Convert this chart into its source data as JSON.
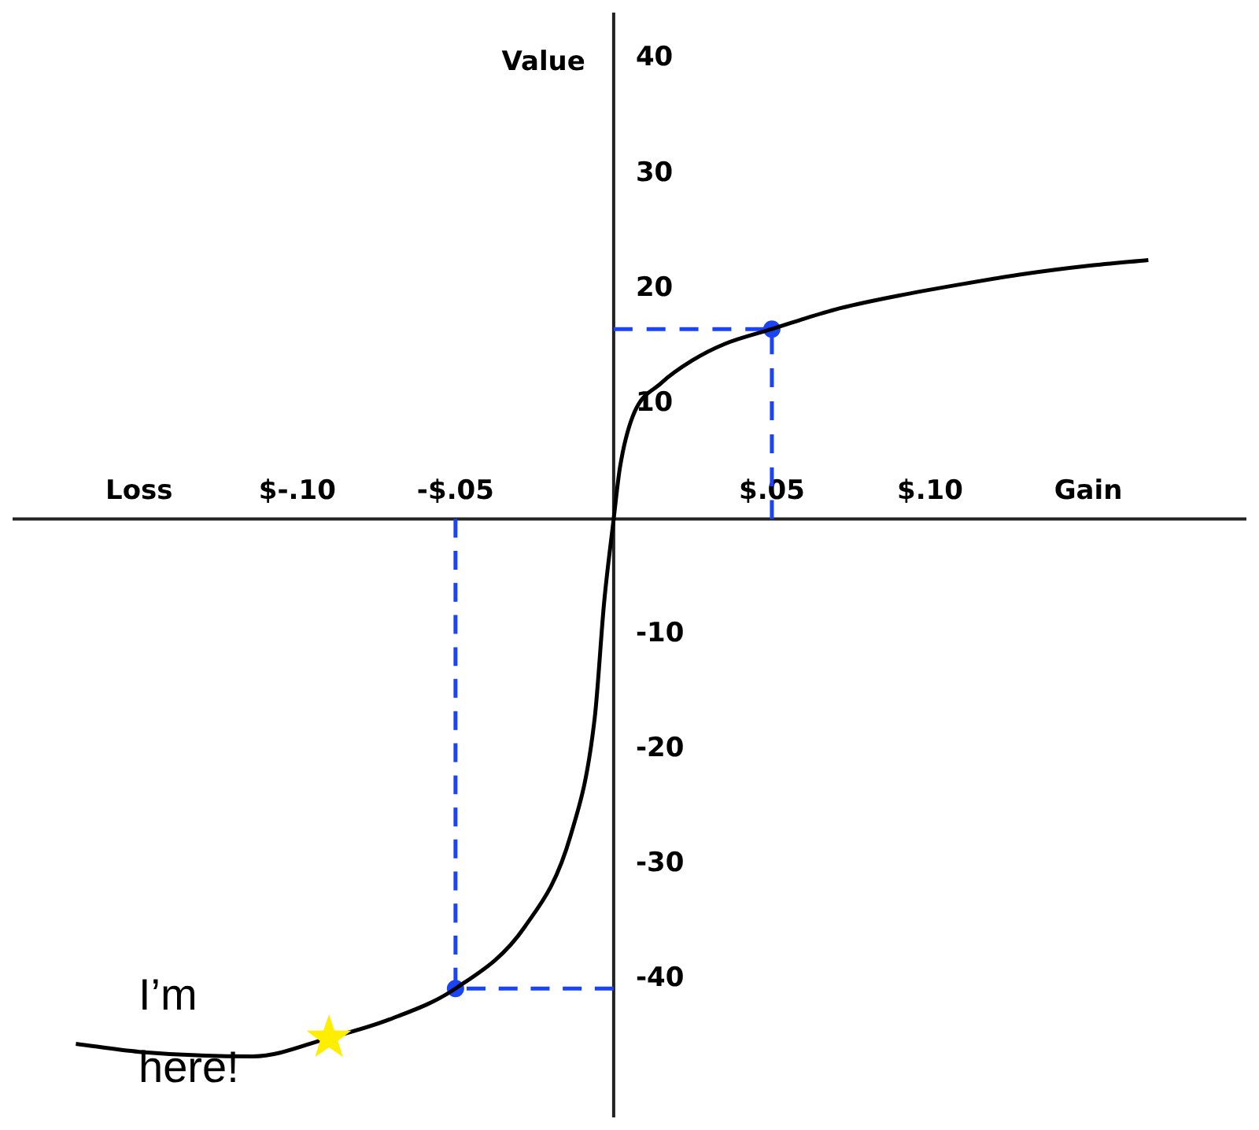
{
  "chart_data": {
    "type": "line",
    "ylabel": "Value",
    "xlim": [
      -0.19,
      0.2
    ],
    "ylim": [
      -52,
      44
    ],
    "xticks": [
      {
        "value": -0.15,
        "label": "Loss"
      },
      {
        "value": -0.1,
        "label": "$-.10"
      },
      {
        "value": -0.05,
        "label": "-$.05"
      },
      {
        "value": 0.05,
        "label": "$.05"
      },
      {
        "value": 0.1,
        "label": "$.10"
      },
      {
        "value": 0.15,
        "label": "Gain"
      }
    ],
    "yticks": [
      -40,
      -30,
      -20,
      -10,
      10,
      20,
      30,
      40
    ],
    "grid": false,
    "legend": false,
    "series": [
      {
        "type": "line",
        "color": "#000000",
        "marker": "none",
        "line_style": "solid",
        "x": [
          -0.17,
          -0.15,
          -0.114,
          -0.09,
          -0.071,
          -0.05,
          -0.028,
          -0.0135,
          -0.006,
          -0.003,
          0,
          0.002,
          0.006,
          0.015,
          0.025,
          0.035,
          0.05,
          0.07,
          0.09,
          0.11,
          0.13,
          0.15,
          0.169
        ],
        "values": [
          -45.6,
          -46.3,
          -46.7,
          -45.1,
          -43.5,
          -40.8,
          -35.4,
          -27.4,
          -17.3,
          -7.2,
          0,
          4.5,
          8.9,
          11.8,
          13.8,
          15.2,
          16.5,
          18.2,
          19.4,
          20.4,
          21.3,
          22,
          22.5
        ]
      },
      {
        "type": "line",
        "color": "#1a44f5",
        "marker": "none",
        "line_style": "dashed",
        "x": [
          0.05,
          0.05,
          0
        ],
        "values": [
          0,
          16.5,
          16.5
        ]
      },
      {
        "type": "line",
        "color": "#1a44f5",
        "marker": "none",
        "line_style": "dashed",
        "x": [
          -0.05,
          -0.05,
          0
        ],
        "values": [
          0,
          -40.8,
          -40.8
        ]
      },
      {
        "type": "scatter",
        "color": "#1a44f5",
        "marker": "circle",
        "x": [
          -0.05,
          0.05
        ],
        "values": [
          -40.8,
          16.5
        ]
      },
      {
        "type": "scatter",
        "color": "#ffee00",
        "marker": "star",
        "x": [
          -0.09
        ],
        "values": [
          -45.1
        ]
      }
    ],
    "annotations": [
      {
        "text": "I’m here!",
        "x": -0.09,
        "y": -45.1
      }
    ]
  }
}
